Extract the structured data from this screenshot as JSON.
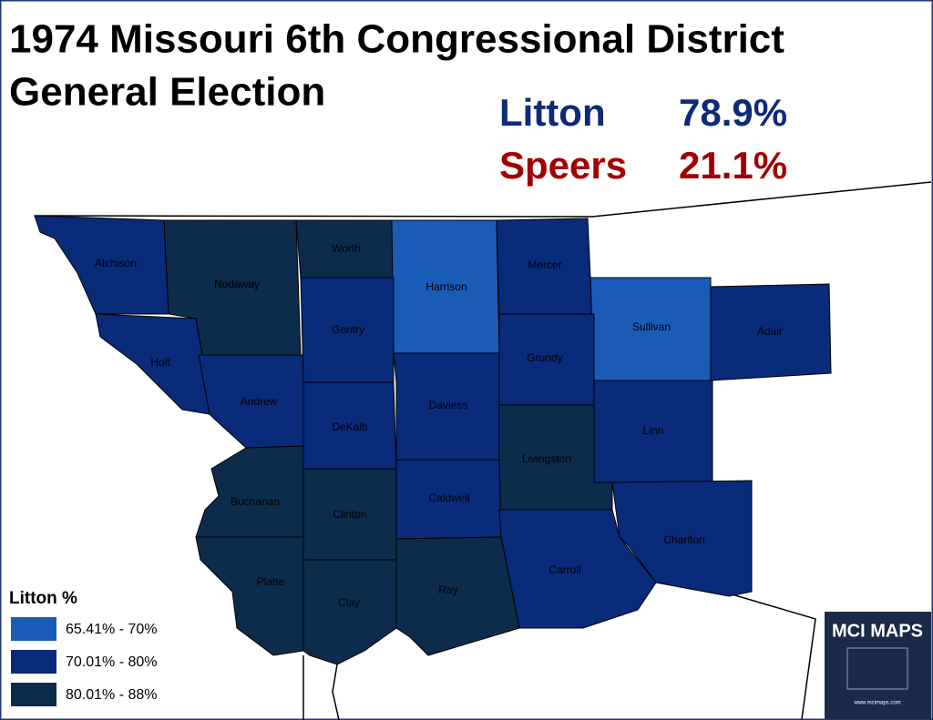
{
  "header": {
    "title_line_1": "1974 Missouri 6th Congressional District",
    "title_line_2": "General Election"
  },
  "results": [
    {
      "name": "Litton",
      "share": "78.9%",
      "color": "#0e2a78"
    },
    {
      "name": "Speers",
      "share": "21.1%",
      "color": "#a00000"
    }
  ],
  "counties": [
    {
      "name": "Atchison",
      "color": "#0a2a7a"
    },
    {
      "name": "Nodaway",
      "color": "#0d2b4b"
    },
    {
      "name": "Worth",
      "color": "#0d2b4b"
    },
    {
      "name": "Harrison",
      "color": "#1a5bb8"
    },
    {
      "name": "Mercer",
      "color": "#0a2a7a"
    },
    {
      "name": "Sullivan",
      "color": "#1a5bb8"
    },
    {
      "name": "Adair",
      "color": "#0a2a7a"
    },
    {
      "name": "Holt",
      "color": "#0a2a7a"
    },
    {
      "name": "Andrew",
      "color": "#0a2a7a"
    },
    {
      "name": "Gentry",
      "color": "#0a2a7a"
    },
    {
      "name": "Grundy",
      "color": "#0a2a7a"
    },
    {
      "name": "DeKalb",
      "color": "#0a2a7a"
    },
    {
      "name": "Daviess",
      "color": "#0a2a7a"
    },
    {
      "name": "Linn",
      "color": "#0a2a7a"
    },
    {
      "name": "Livingston",
      "color": "#0d2b4b"
    },
    {
      "name": "Buchanan",
      "color": "#0d2b4b"
    },
    {
      "name": "Clinton",
      "color": "#0d2b4b"
    },
    {
      "name": "Caldwell",
      "color": "#0a2a7a"
    },
    {
      "name": "Chariton",
      "color": "#0a2a7a"
    },
    {
      "name": "Carroll",
      "color": "#0a2a7a"
    },
    {
      "name": "Ray",
      "color": "#0d2b4b"
    },
    {
      "name": "Clay",
      "color": "#0d2b4b"
    },
    {
      "name": "Platte",
      "color": "#0d2b4b"
    }
  ],
  "legend": {
    "title": "Litton %",
    "entries": [
      {
        "label": "65.41% - 70%",
        "color": "#1a5bb8"
      },
      {
        "label": "70.01% - 80%",
        "color": "#0a2a7a"
      },
      {
        "label": "80.01% - 88%",
        "color": "#0d2b4b"
      }
    ]
  },
  "logo": {
    "title": "MCI MAPS",
    "url": "www.mcimaps.com"
  }
}
